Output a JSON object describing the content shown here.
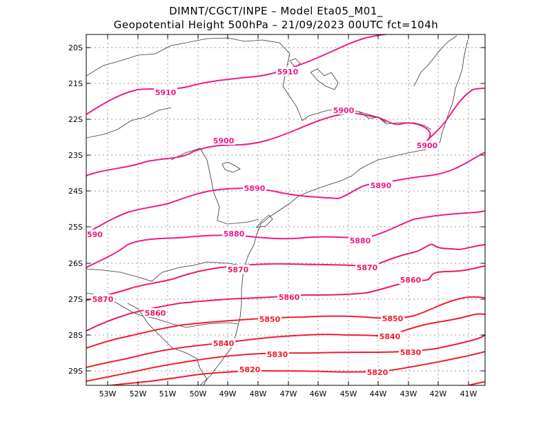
{
  "header": {
    "line1": "DIMNT/CGCT/INPE –  Model Eta05_M01_",
    "line2": "Geopotential Height 500hPa –  21/09/2023 00UTC fct=104h"
  },
  "axes": {
    "lat_labels": [
      "20S",
      "21S",
      "22S",
      "23S",
      "24S",
      "25S",
      "26S",
      "27S",
      "28S",
      "29S"
    ],
    "lon_labels": [
      "53W",
      "52W",
      "51W",
      "50W",
      "49W",
      "48W",
      "47W",
      "46W",
      "45W",
      "44W",
      "43W",
      "42W",
      "41W"
    ]
  },
  "contours": {
    "labels": [
      "5910",
      "5910",
      "5900",
      "5900",
      "5900",
      "5890",
      "5890",
      "590",
      "5880",
      "5880",
      "5870",
      "5870",
      "5870",
      "5860",
      "5860",
      "5860",
      "5850",
      "5850",
      "5840",
      "5840",
      "5830",
      "5830",
      "5820",
      "5820"
    ]
  },
  "colors": {
    "high": "#ee1a8c",
    "mid": "#f0185e",
    "low": "#f21c2a",
    "coast": "#333333",
    "grid": "#9a9a9a"
  }
}
